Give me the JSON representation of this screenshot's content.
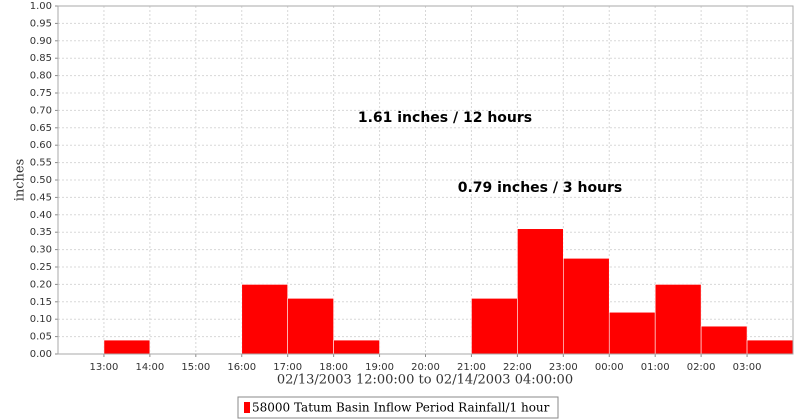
{
  "chart_data": {
    "type": "histogram",
    "y_label": "inches",
    "x_label": "02/13/2003 12:00:00 to 02/14/2003 04:00:00",
    "annotations": [
      "1.61 inches / 12 hours",
      "0.79 inches / 3 hours"
    ],
    "bins": [
      12,
      13,
      14,
      15,
      16,
      17,
      18,
      19,
      20,
      21,
      22,
      23,
      24,
      25,
      26,
      27,
      28
    ],
    "series": [
      {
        "name": "58000 Tatum Basin Inflow Period Rainfall/1 hour",
        "color": "#ff0000",
        "values": [
          0,
          0.04,
          0,
          0,
          0.2,
          0.16,
          0.04,
          0,
          0,
          0.16,
          0.36,
          0.275,
          0.12,
          0.2,
          0.08,
          0.04
        ]
      }
    ],
    "xlim": [
      12,
      28
    ],
    "xticks": [
      {
        "value": 13,
        "label": "13:00"
      },
      {
        "value": 14,
        "label": "14:00"
      },
      {
        "value": 15,
        "label": "15:00"
      },
      {
        "value": 16,
        "label": "16:00"
      },
      {
        "value": 17,
        "label": "17:00"
      },
      {
        "value": 18,
        "label": "18:00"
      },
      {
        "value": 19,
        "label": "19:00"
      },
      {
        "value": 20,
        "label": "20:00"
      },
      {
        "value": 21,
        "label": "21:00"
      },
      {
        "value": 22,
        "label": "22:00"
      },
      {
        "value": 23,
        "label": "23:00"
      },
      {
        "value": 24,
        "label": "00:00"
      },
      {
        "value": 25,
        "label": "01:00"
      },
      {
        "value": 26,
        "label": "02:00"
      },
      {
        "value": 27,
        "label": "03:00"
      }
    ],
    "ylim": [
      0,
      1
    ],
    "yticks": [
      {
        "value": 0,
        "label": "0.00"
      },
      0.05,
      {
        "value": 0.1,
        "label": "0.10"
      },
      0.15,
      {
        "value": 0.2,
        "label": "0.20"
      },
      0.25,
      {
        "value": 0.3,
        "label": "0.30"
      },
      0.35,
      {
        "value": 0.4,
        "label": "0.40"
      },
      0.45,
      {
        "value": 0.5,
        "label": "0.50"
      },
      0.55,
      {
        "value": 0.6,
        "label": "0.60"
      },
      0.65,
      {
        "value": 0.7,
        "label": "0.70"
      },
      0.75,
      {
        "value": 0.8,
        "label": "0.80"
      },
      0.85,
      {
        "value": 0.9,
        "label": "0.90"
      },
      0.95,
      {
        "value": 1,
        "label": "1.00"
      }
    ],
    "grid": true
  }
}
